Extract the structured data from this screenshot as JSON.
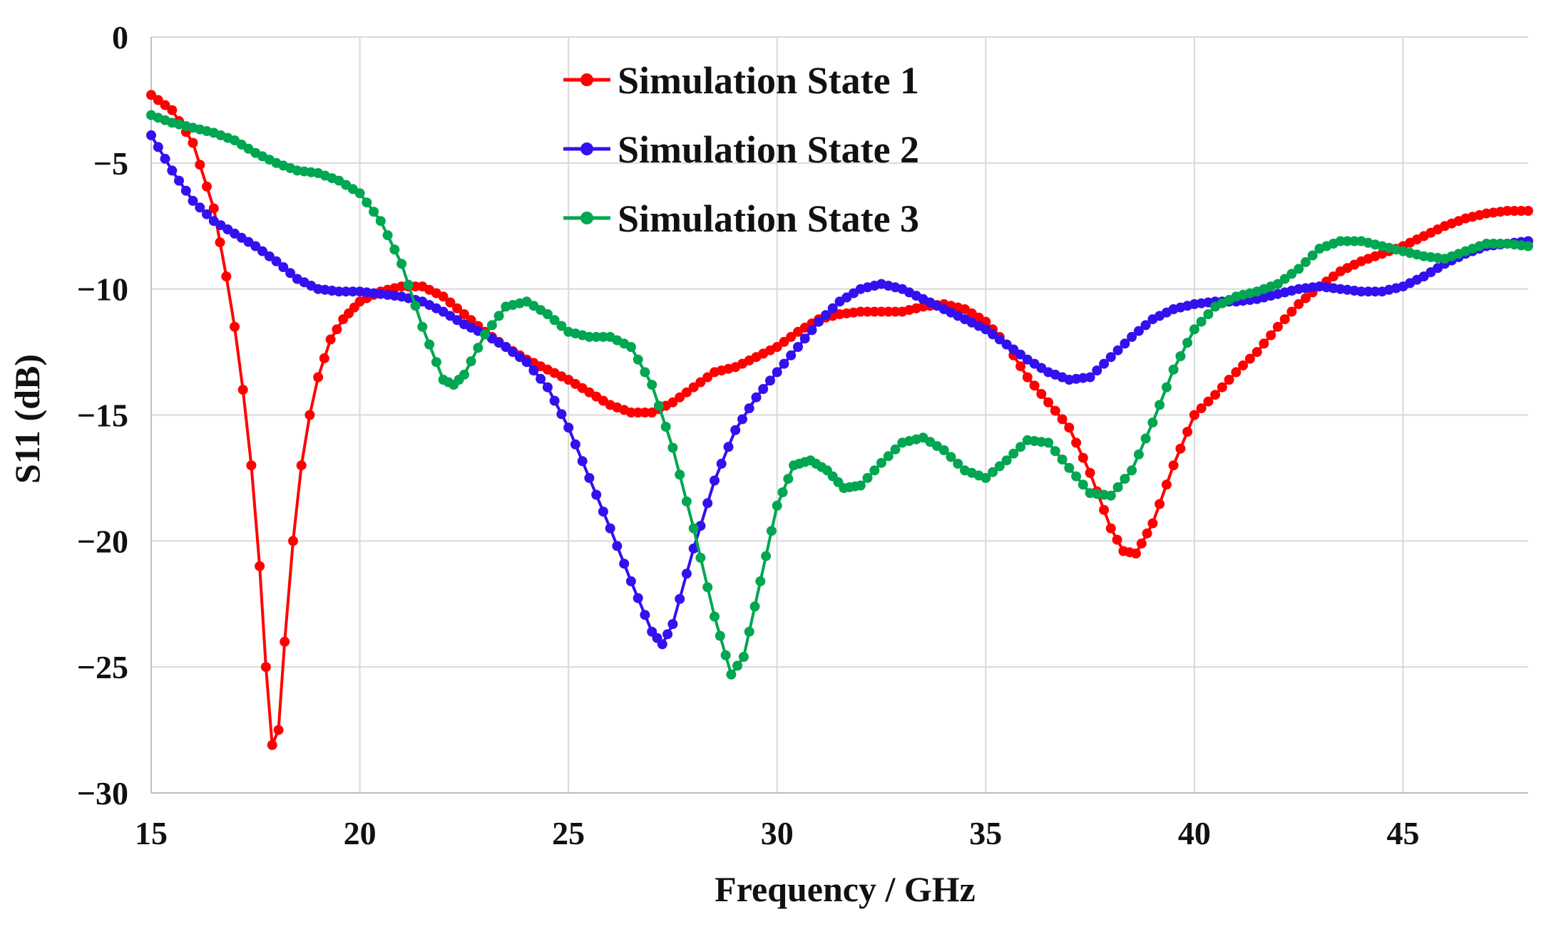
{
  "chart_data": {
    "type": "line",
    "title": "",
    "xlabel": "Frequency / GHz",
    "ylabel": "S11 (dB)",
    "xlim": [
      15,
      48
    ],
    "ylim": [
      -30,
      0
    ],
    "xticks": [
      15,
      20,
      25,
      30,
      35,
      40,
      45
    ],
    "yticks": [
      0,
      -5,
      -10,
      -15,
      -20,
      -25,
      -30
    ],
    "xtick_labels": [
      "15",
      "20",
      "25",
      "30",
      "35",
      "40",
      "45"
    ],
    "ytick_labels": [
      "0",
      "−5",
      "−10",
      "−15",
      "−20",
      "−25",
      "−30"
    ],
    "grid": true,
    "legend_position": "top-center",
    "series": [
      {
        "name": "Simulation State 1",
        "color": "#ff0000",
        "points": [
          [
            15,
            -2.3
          ],
          [
            15.5,
            -2.9
          ],
          [
            16,
            -4.2
          ],
          [
            16.5,
            -6.8
          ],
          [
            16.8,
            -9.5
          ],
          [
            17,
            -11.5
          ],
          [
            17.2,
            -14
          ],
          [
            17.4,
            -17
          ],
          [
            17.6,
            -21
          ],
          [
            17.75,
            -25
          ],
          [
            17.9,
            -28.1
          ],
          [
            18.05,
            -27.5
          ],
          [
            18.2,
            -24
          ],
          [
            18.4,
            -20
          ],
          [
            18.6,
            -17
          ],
          [
            18.8,
            -15
          ],
          [
            19,
            -13.5
          ],
          [
            19.3,
            -12
          ],
          [
            19.6,
            -11.2
          ],
          [
            20,
            -10.5
          ],
          [
            20.5,
            -10.1
          ],
          [
            21,
            -9.9
          ],
          [
            21.5,
            -9.9
          ],
          [
            22,
            -10.3
          ],
          [
            22.5,
            -11
          ],
          [
            23,
            -11.7
          ],
          [
            23.5,
            -12.3
          ],
          [
            24,
            -12.8
          ],
          [
            24.5,
            -13.2
          ],
          [
            25,
            -13.6
          ],
          [
            25.5,
            -14.1
          ],
          [
            26,
            -14.6
          ],
          [
            26.5,
            -14.9
          ],
          [
            27,
            -14.9
          ],
          [
            27.5,
            -14.5
          ],
          [
            28,
            -13.9
          ],
          [
            28.5,
            -13.3
          ],
          [
            29,
            -13.1
          ],
          [
            29.5,
            -12.7
          ],
          [
            30,
            -12.3
          ],
          [
            30.5,
            -11.7
          ],
          [
            31,
            -11.2
          ],
          [
            31.5,
            -11.0
          ],
          [
            32,
            -10.9
          ],
          [
            32.5,
            -10.9
          ],
          [
            33,
            -10.9
          ],
          [
            33.5,
            -10.7
          ],
          [
            34,
            -10.6
          ],
          [
            34.5,
            -10.8
          ],
          [
            35,
            -11.3
          ],
          [
            35.5,
            -12.2
          ],
          [
            36,
            -13.5
          ],
          [
            36.5,
            -14.5
          ],
          [
            37,
            -15.5
          ],
          [
            37.5,
            -17.3
          ],
          [
            38,
            -19.5
          ],
          [
            38.3,
            -20.4
          ],
          [
            38.6,
            -20.5
          ],
          [
            39,
            -19.3
          ],
          [
            39.5,
            -17
          ],
          [
            40,
            -15
          ],
          [
            40.5,
            -14.2
          ],
          [
            41,
            -13.3
          ],
          [
            41.5,
            -12.5
          ],
          [
            42,
            -11.5
          ],
          [
            42.5,
            -10.6
          ],
          [
            43,
            -9.9
          ],
          [
            43.5,
            -9.3
          ],
          [
            44,
            -8.9
          ],
          [
            44.5,
            -8.6
          ],
          [
            45,
            -8.3
          ],
          [
            45.5,
            -7.9
          ],
          [
            46,
            -7.5
          ],
          [
            46.5,
            -7.2
          ],
          [
            47,
            -7.0
          ],
          [
            47.5,
            -6.9
          ],
          [
            48,
            -6.9
          ]
        ]
      },
      {
        "name": "Simulation State 2",
        "color": "#3311ee",
        "points": [
          [
            15,
            -3.9
          ],
          [
            15.5,
            -5.3
          ],
          [
            16,
            -6.5
          ],
          [
            16.5,
            -7.3
          ],
          [
            17,
            -7.8
          ],
          [
            17.5,
            -8.3
          ],
          [
            18,
            -8.9
          ],
          [
            18.5,
            -9.6
          ],
          [
            19,
            -10.0
          ],
          [
            19.5,
            -10.1
          ],
          [
            20,
            -10.1
          ],
          [
            20.5,
            -10.2
          ],
          [
            21,
            -10.3
          ],
          [
            21.5,
            -10.5
          ],
          [
            22,
            -10.9
          ],
          [
            22.5,
            -11.4
          ],
          [
            23,
            -11.8
          ],
          [
            23.5,
            -12.3
          ],
          [
            24,
            -12.9
          ],
          [
            24.5,
            -13.9
          ],
          [
            25,
            -15.5
          ],
          [
            25.5,
            -17.5
          ],
          [
            26,
            -19.5
          ],
          [
            26.5,
            -21.6
          ],
          [
            27,
            -23.6
          ],
          [
            27.25,
            -24.1
          ],
          [
            27.5,
            -23.3
          ],
          [
            28,
            -20.3
          ],
          [
            28.5,
            -17.6
          ],
          [
            29,
            -15.6
          ],
          [
            29.5,
            -14.3
          ],
          [
            30,
            -13.3
          ],
          [
            30.5,
            -12.3
          ],
          [
            31,
            -11.3
          ],
          [
            31.5,
            -10.5
          ],
          [
            32,
            -10.0
          ],
          [
            32.5,
            -9.8
          ],
          [
            33,
            -10.0
          ],
          [
            33.5,
            -10.4
          ],
          [
            34,
            -10.8
          ],
          [
            34.5,
            -11.2
          ],
          [
            35,
            -11.6
          ],
          [
            35.5,
            -12.2
          ],
          [
            36,
            -12.8
          ],
          [
            36.5,
            -13.3
          ],
          [
            37,
            -13.6
          ],
          [
            37.5,
            -13.5
          ],
          [
            38,
            -12.7
          ],
          [
            38.5,
            -11.9
          ],
          [
            39,
            -11.2
          ],
          [
            39.5,
            -10.8
          ],
          [
            40,
            -10.6
          ],
          [
            40.5,
            -10.5
          ],
          [
            41,
            -10.5
          ],
          [
            41.5,
            -10.4
          ],
          [
            42,
            -10.2
          ],
          [
            42.5,
            -10.0
          ],
          [
            43,
            -9.9
          ],
          [
            43.5,
            -10.0
          ],
          [
            44,
            -10.1
          ],
          [
            44.5,
            -10.1
          ],
          [
            45,
            -9.9
          ],
          [
            45.5,
            -9.5
          ],
          [
            46,
            -9.0
          ],
          [
            46.5,
            -8.6
          ],
          [
            47,
            -8.3
          ],
          [
            47.5,
            -8.2
          ],
          [
            48,
            -8.1
          ]
        ]
      },
      {
        "name": "Simulation State 3",
        "color": "#00a651",
        "points": [
          [
            15,
            -3.1
          ],
          [
            15.5,
            -3.4
          ],
          [
            16,
            -3.6
          ],
          [
            16.5,
            -3.8
          ],
          [
            17,
            -4.1
          ],
          [
            17.5,
            -4.6
          ],
          [
            18,
            -5.0
          ],
          [
            18.5,
            -5.3
          ],
          [
            19,
            -5.4
          ],
          [
            19.5,
            -5.7
          ],
          [
            20,
            -6.2
          ],
          [
            20.5,
            -7.3
          ],
          [
            21,
            -9.0
          ],
          [
            21.5,
            -11.5
          ],
          [
            22,
            -13.6
          ],
          [
            22.25,
            -13.8
          ],
          [
            22.5,
            -13.4
          ],
          [
            23,
            -11.8
          ],
          [
            23.5,
            -10.7
          ],
          [
            24,
            -10.5
          ],
          [
            24.5,
            -11.0
          ],
          [
            25,
            -11.7
          ],
          [
            25.5,
            -11.9
          ],
          [
            26,
            -11.9
          ],
          [
            26.5,
            -12.3
          ],
          [
            27,
            -13.8
          ],
          [
            27.5,
            -16.3
          ],
          [
            28,
            -19.5
          ],
          [
            28.5,
            -23.0
          ],
          [
            28.9,
            -25.3
          ],
          [
            29.2,
            -24.6
          ],
          [
            29.6,
            -21.6
          ],
          [
            30,
            -18.6
          ],
          [
            30.4,
            -17.0
          ],
          [
            30.8,
            -16.8
          ],
          [
            31.2,
            -17.2
          ],
          [
            31.6,
            -17.9
          ],
          [
            32,
            -17.8
          ],
          [
            32.5,
            -16.9
          ],
          [
            33,
            -16.1
          ],
          [
            33.5,
            -15.9
          ],
          [
            34,
            -16.4
          ],
          [
            34.5,
            -17.2
          ],
          [
            35,
            -17.5
          ],
          [
            35.5,
            -16.8
          ],
          [
            36,
            -16.0
          ],
          [
            36.5,
            -16.1
          ],
          [
            37,
            -17.1
          ],
          [
            37.5,
            -18.1
          ],
          [
            38,
            -18.2
          ],
          [
            38.5,
            -17.2
          ],
          [
            39,
            -15.3
          ],
          [
            39.5,
            -13.2
          ],
          [
            40,
            -11.6
          ],
          [
            40.5,
            -10.7
          ],
          [
            41,
            -10.3
          ],
          [
            41.5,
            -10.1
          ],
          [
            42,
            -9.8
          ],
          [
            42.5,
            -9.2
          ],
          [
            43,
            -8.4
          ],
          [
            43.5,
            -8.1
          ],
          [
            44,
            -8.1
          ],
          [
            44.5,
            -8.3
          ],
          [
            45,
            -8.5
          ],
          [
            45.5,
            -8.7
          ],
          [
            46,
            -8.8
          ],
          [
            46.5,
            -8.5
          ],
          [
            47,
            -8.2
          ],
          [
            47.5,
            -8.2
          ],
          [
            48,
            -8.3
          ]
        ]
      }
    ]
  }
}
